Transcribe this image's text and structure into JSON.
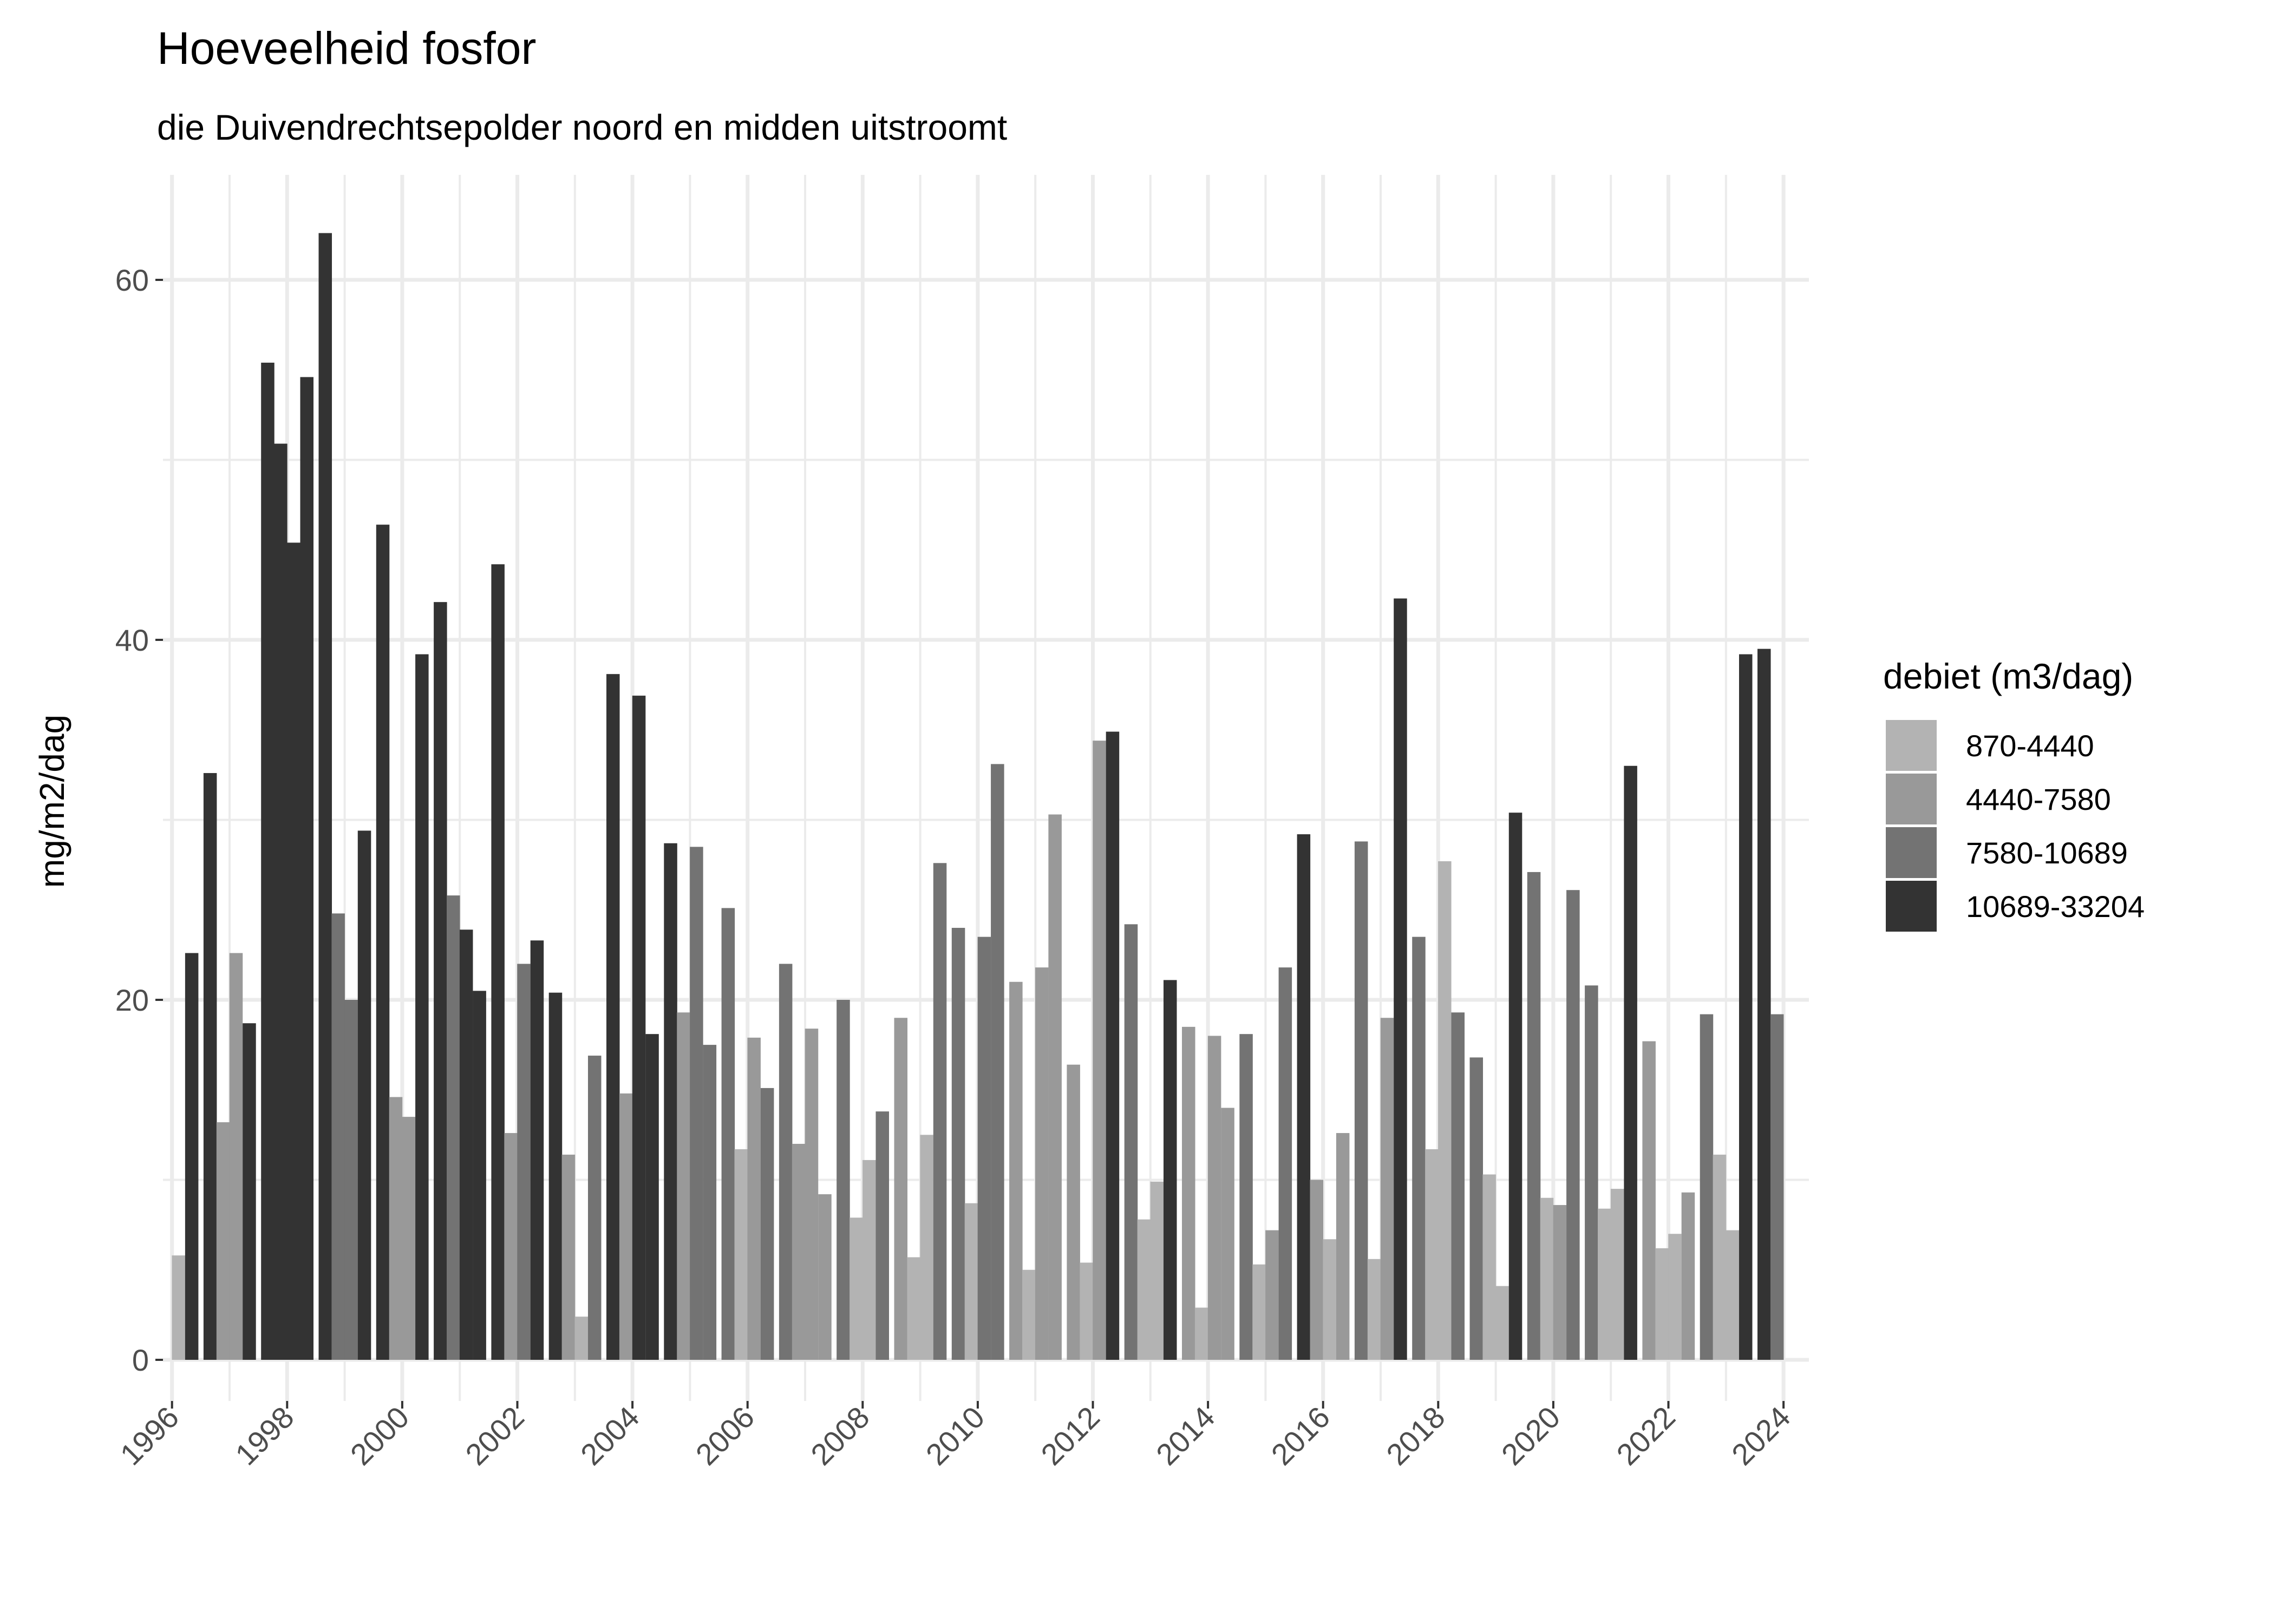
{
  "chart_data": {
    "type": "bar",
    "title": "Hoeveelheid fosfor",
    "subtitle": "die Duivendrechtsepolder noord en midden uitstroomt",
    "xlabel": "",
    "ylabel": "mg/m2/dag",
    "xlim": [
      1995.85,
      2024.2
    ],
    "ylim": [
      -3.1,
      65.7
    ],
    "x_ticks": [
      "1996",
      "1998",
      "2000",
      "2002",
      "2004",
      "2006",
      "2008",
      "2010",
      "2012",
      "2014",
      "2016",
      "2018",
      "2020",
      "2022",
      "2024"
    ],
    "y_ticks": [
      "0",
      "20",
      "40",
      "60"
    ],
    "grid": true,
    "legend": {
      "title": "debiet (m3/dag)",
      "position": "right",
      "entries": [
        {
          "label": "870-4440",
          "color": "#B3B3B3"
        },
        {
          "label": "4440-7580",
          "color": "#999999"
        },
        {
          "label": "7580-10689",
          "color": "#737373"
        },
        {
          "label": "10689-33204",
          "color": "#333333"
        }
      ]
    },
    "bar_width_years": 0.225,
    "bars": [
      [
        1996.11,
        5.8,
        "870-4440"
      ],
      [
        1996.34,
        22.6,
        "10689-33204"
      ],
      [
        1996.66,
        32.6,
        "10689-33204"
      ],
      [
        1996.885,
        13.2,
        "4440-7580"
      ],
      [
        1997.11,
        22.6,
        "4440-7580"
      ],
      [
        1997.34,
        18.7,
        "10689-33204"
      ],
      [
        1997.66,
        55.4,
        "10689-33204"
      ],
      [
        1997.885,
        50.9,
        "10689-33204"
      ],
      [
        1998.11,
        45.4,
        "10689-33204"
      ],
      [
        1998.34,
        54.6,
        "10689-33204"
      ],
      [
        1998.66,
        62.6,
        "10689-33204"
      ],
      [
        1998.885,
        24.8,
        "7580-10689"
      ],
      [
        1999.11,
        20.0,
        "7580-10689"
      ],
      [
        1999.34,
        29.4,
        "10689-33204"
      ],
      [
        1999.66,
        46.4,
        "10689-33204"
      ],
      [
        1999.885,
        14.6,
        "4440-7580"
      ],
      [
        2000.11,
        13.5,
        "4440-7580"
      ],
      [
        2000.34,
        39.2,
        "10689-33204"
      ],
      [
        2000.66,
        42.1,
        "10689-33204"
      ],
      [
        2000.885,
        25.8,
        "7580-10689"
      ],
      [
        2001.11,
        23.9,
        "10689-33204"
      ],
      [
        2001.34,
        20.5,
        "10689-33204"
      ],
      [
        2001.66,
        44.2,
        "10689-33204"
      ],
      [
        2001.885,
        12.6,
        "4440-7580"
      ],
      [
        2002.11,
        22.0,
        "7580-10689"
      ],
      [
        2002.34,
        23.3,
        "10689-33204"
      ],
      [
        2002.66,
        20.4,
        "10689-33204"
      ],
      [
        2002.885,
        11.4,
        "4440-7580"
      ],
      [
        2003.11,
        2.4,
        "870-4440"
      ],
      [
        2003.34,
        16.9,
        "7580-10689"
      ],
      [
        2003.66,
        38.1,
        "10689-33204"
      ],
      [
        2003.885,
        14.8,
        "4440-7580"
      ],
      [
        2004.11,
        36.9,
        "10689-33204"
      ],
      [
        2004.34,
        18.1,
        "10689-33204"
      ],
      [
        2004.66,
        28.7,
        "10689-33204"
      ],
      [
        2004.885,
        19.3,
        "4440-7580"
      ],
      [
        2005.11,
        28.5,
        "7580-10689"
      ],
      [
        2005.34,
        17.5,
        "7580-10689"
      ],
      [
        2005.66,
        25.1,
        "7580-10689"
      ],
      [
        2005.885,
        11.7,
        "870-4440"
      ],
      [
        2006.11,
        17.9,
        "4440-7580"
      ],
      [
        2006.34,
        15.1,
        "7580-10689"
      ],
      [
        2006.66,
        22.0,
        "7580-10689"
      ],
      [
        2006.885,
        12.0,
        "4440-7580"
      ],
      [
        2007.11,
        18.4,
        "4440-7580"
      ],
      [
        2007.34,
        9.2,
        "4440-7580"
      ],
      [
        2007.66,
        20.0,
        "7580-10689"
      ],
      [
        2007.885,
        7.9,
        "870-4440"
      ],
      [
        2008.11,
        11.1,
        "870-4440"
      ],
      [
        2008.34,
        13.8,
        "7580-10689"
      ],
      [
        2008.66,
        19.0,
        "4440-7580"
      ],
      [
        2008.885,
        5.7,
        "870-4440"
      ],
      [
        2009.11,
        12.5,
        "870-4440"
      ],
      [
        2009.34,
        27.6,
        "7580-10689"
      ],
      [
        2009.66,
        24.0,
        "7580-10689"
      ],
      [
        2009.885,
        8.7,
        "870-4440"
      ],
      [
        2010.11,
        23.5,
        "7580-10689"
      ],
      [
        2010.34,
        33.1,
        "7580-10689"
      ],
      [
        2010.66,
        21.0,
        "4440-7580"
      ],
      [
        2010.885,
        5.0,
        "870-4440"
      ],
      [
        2011.11,
        21.8,
        "4440-7580"
      ],
      [
        2011.34,
        30.3,
        "4440-7580"
      ],
      [
        2011.66,
        16.4,
        "4440-7580"
      ],
      [
        2011.885,
        5.4,
        "870-4440"
      ],
      [
        2012.11,
        34.4,
        "4440-7580"
      ],
      [
        2012.34,
        34.9,
        "10689-33204"
      ],
      [
        2012.66,
        24.2,
        "7580-10689"
      ],
      [
        2012.885,
        7.8,
        "870-4440"
      ],
      [
        2013.11,
        9.9,
        "870-4440"
      ],
      [
        2013.34,
        21.1,
        "10689-33204"
      ],
      [
        2013.66,
        18.5,
        "4440-7580"
      ],
      [
        2013.885,
        2.9,
        "870-4440"
      ],
      [
        2014.11,
        18.0,
        "4440-7580"
      ],
      [
        2014.34,
        14.0,
        "4440-7580"
      ],
      [
        2014.66,
        18.1,
        "7580-10689"
      ],
      [
        2014.885,
        5.3,
        "870-4440"
      ],
      [
        2015.11,
        7.2,
        "4440-7580"
      ],
      [
        2015.34,
        21.8,
        "7580-10689"
      ],
      [
        2015.66,
        29.2,
        "10689-33204"
      ],
      [
        2015.885,
        10.0,
        "4440-7580"
      ],
      [
        2016.11,
        6.7,
        "870-4440"
      ],
      [
        2016.34,
        12.6,
        "4440-7580"
      ],
      [
        2016.66,
        28.8,
        "7580-10689"
      ],
      [
        2016.885,
        5.6,
        "870-4440"
      ],
      [
        2017.11,
        19.0,
        "4440-7580"
      ],
      [
        2017.34,
        42.3,
        "10689-33204"
      ],
      [
        2017.66,
        23.5,
        "7580-10689"
      ],
      [
        2017.885,
        11.7,
        "870-4440"
      ],
      [
        2018.11,
        27.7,
        "870-4440"
      ],
      [
        2018.34,
        19.3,
        "7580-10689"
      ],
      [
        2018.66,
        16.8,
        "7580-10689"
      ],
      [
        2018.885,
        10.3,
        "870-4440"
      ],
      [
        2019.11,
        4.1,
        "870-4440"
      ],
      [
        2019.34,
        30.4,
        "10689-33204"
      ],
      [
        2019.66,
        27.1,
        "7580-10689"
      ],
      [
        2019.885,
        9.0,
        "870-4440"
      ],
      [
        2020.11,
        8.6,
        "4440-7580"
      ],
      [
        2020.34,
        26.1,
        "7580-10689"
      ],
      [
        2020.66,
        20.8,
        "7580-10689"
      ],
      [
        2020.885,
        8.4,
        "870-4440"
      ],
      [
        2021.11,
        9.5,
        "870-4440"
      ],
      [
        2021.34,
        33.0,
        "10689-33204"
      ],
      [
        2021.66,
        17.7,
        "4440-7580"
      ],
      [
        2021.885,
        6.2,
        "870-4440"
      ],
      [
        2022.11,
        7.0,
        "870-4440"
      ],
      [
        2022.34,
        9.3,
        "4440-7580"
      ],
      [
        2022.66,
        19.2,
        "7580-10689"
      ],
      [
        2022.885,
        11.4,
        "870-4440"
      ],
      [
        2023.11,
        7.2,
        "870-4440"
      ],
      [
        2023.34,
        39.2,
        "10689-33204"
      ],
      [
        2023.66,
        39.5,
        "10689-33204"
      ],
      [
        2023.885,
        19.2,
        "7580-10689"
      ]
    ],
    "colors": {
      "grid": "#EBEBEB",
      "tick_text": "#4D4D4D",
      "tick_mark": "#333333"
    }
  }
}
